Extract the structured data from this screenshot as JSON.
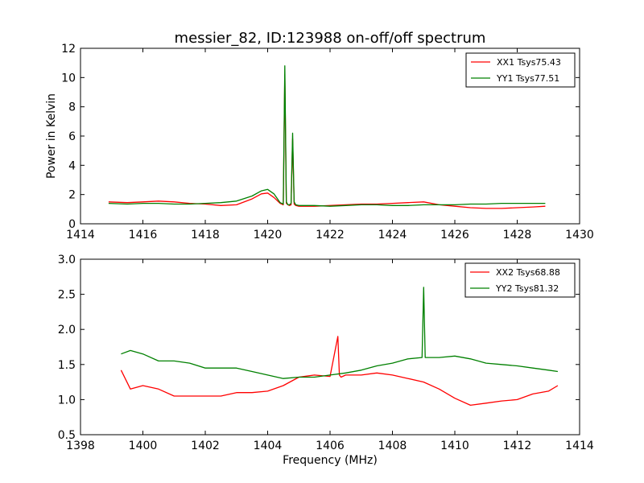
{
  "figure": {
    "title": "messier_82, ID:123988 on-off/off spectrum"
  },
  "chart_data": [
    {
      "type": "line",
      "title": "messier_82, ID:123988 on-off/off spectrum",
      "xlabel": "",
      "ylabel": "Power in Kelvin",
      "xlim": [
        1414,
        1430
      ],
      "ylim": [
        0,
        12
      ],
      "xticks": [
        "1414",
        "1416",
        "1418",
        "1420",
        "1422",
        "1424",
        "1426",
        "1428",
        "1430"
      ],
      "yticks": [
        "0",
        "2",
        "4",
        "6",
        "8",
        "10",
        "12"
      ],
      "legend_position": "top-right",
      "grid": false,
      "series": [
        {
          "name": "XX1 Tsys75.43",
          "color": "#ff0000",
          "x": [
            1414.9,
            1415.5,
            1416.0,
            1416.5,
            1417.0,
            1417.5,
            1418.0,
            1418.5,
            1419.0,
            1419.5,
            1419.8,
            1420.0,
            1420.2,
            1420.4,
            1420.5,
            1420.55,
            1420.6,
            1420.65,
            1420.7,
            1420.75,
            1420.8,
            1420.85,
            1420.9,
            1421.0,
            1421.5,
            1422.0,
            1422.5,
            1423.0,
            1423.5,
            1424.0,
            1424.5,
            1425.0,
            1425.5,
            1426.0,
            1426.5,
            1427.0,
            1427.5,
            1428.0,
            1428.5,
            1428.9
          ],
          "values": [
            1.5,
            1.45,
            1.5,
            1.55,
            1.5,
            1.4,
            1.35,
            1.25,
            1.3,
            1.7,
            2.05,
            2.1,
            1.8,
            1.4,
            1.3,
            10.2,
            1.4,
            1.3,
            1.25,
            1.3,
            5.8,
            1.35,
            1.25,
            1.2,
            1.2,
            1.25,
            1.3,
            1.35,
            1.35,
            1.4,
            1.45,
            1.5,
            1.3,
            1.2,
            1.1,
            1.05,
            1.05,
            1.1,
            1.15,
            1.2
          ]
        },
        {
          "name": "YY1 Tsys77.51",
          "color": "#008000",
          "x": [
            1414.9,
            1415.5,
            1416.0,
            1416.5,
            1417.0,
            1417.5,
            1418.0,
            1418.5,
            1419.0,
            1419.5,
            1419.8,
            1420.0,
            1420.2,
            1420.4,
            1420.5,
            1420.55,
            1420.6,
            1420.65,
            1420.7,
            1420.75,
            1420.8,
            1420.85,
            1420.9,
            1421.0,
            1421.5,
            1422.0,
            1422.5,
            1423.0,
            1423.5,
            1424.0,
            1424.5,
            1425.0,
            1425.5,
            1426.0,
            1426.5,
            1427.0,
            1427.5,
            1428.0,
            1428.5,
            1428.9
          ],
          "values": [
            1.4,
            1.35,
            1.4,
            1.4,
            1.35,
            1.35,
            1.4,
            1.45,
            1.55,
            1.9,
            2.25,
            2.35,
            2.05,
            1.45,
            1.35,
            10.8,
            1.5,
            1.3,
            1.3,
            1.4,
            6.2,
            1.5,
            1.3,
            1.25,
            1.25,
            1.2,
            1.25,
            1.3,
            1.3,
            1.25,
            1.25,
            1.3,
            1.3,
            1.3,
            1.35,
            1.35,
            1.4,
            1.4,
            1.4,
            1.4
          ]
        }
      ]
    },
    {
      "type": "line",
      "title": "",
      "xlabel": "Frequency (MHz)",
      "ylabel": "",
      "xlim": [
        1398,
        1414
      ],
      "ylim": [
        0.5,
        3.0
      ],
      "xticks": [
        "1398",
        "1400",
        "1402",
        "1404",
        "1406",
        "1408",
        "1410",
        "1412",
        "1414"
      ],
      "yticks": [
        "0.5",
        "1.0",
        "1.5",
        "2.0",
        "2.5",
        "3.0"
      ],
      "legend_position": "top-right",
      "grid": false,
      "series": [
        {
          "name": "XX2 Tsys68.88",
          "color": "#ff0000",
          "x": [
            1399.3,
            1399.6,
            1400.0,
            1400.5,
            1401.0,
            1401.5,
            1402.0,
            1402.5,
            1403.0,
            1403.5,
            1404.0,
            1404.5,
            1405.0,
            1405.5,
            1406.0,
            1406.25,
            1406.3,
            1406.35,
            1406.5,
            1407.0,
            1407.5,
            1408.0,
            1408.5,
            1409.0,
            1409.5,
            1410.0,
            1410.5,
            1411.0,
            1411.5,
            1412.0,
            1412.5,
            1413.0,
            1413.3
          ],
          "values": [
            1.42,
            1.15,
            1.2,
            1.15,
            1.05,
            1.05,
            1.05,
            1.05,
            1.1,
            1.1,
            1.12,
            1.2,
            1.32,
            1.35,
            1.33,
            1.9,
            1.35,
            1.32,
            1.35,
            1.35,
            1.38,
            1.35,
            1.3,
            1.25,
            1.15,
            1.02,
            0.92,
            0.95,
            0.98,
            1.0,
            1.08,
            1.12,
            1.2
          ]
        },
        {
          "name": "YY2 Tsys81.32",
          "color": "#008000",
          "x": [
            1399.3,
            1399.6,
            1400.0,
            1400.5,
            1401.0,
            1401.5,
            1402.0,
            1402.5,
            1403.0,
            1403.5,
            1404.0,
            1404.5,
            1405.0,
            1405.5,
            1406.0,
            1406.5,
            1407.0,
            1407.5,
            1408.0,
            1408.5,
            1408.95,
            1409.0,
            1409.05,
            1409.5,
            1410.0,
            1410.5,
            1411.0,
            1411.5,
            1412.0,
            1412.5,
            1413.0,
            1413.3
          ],
          "values": [
            1.65,
            1.7,
            1.65,
            1.55,
            1.55,
            1.52,
            1.45,
            1.45,
            1.45,
            1.4,
            1.35,
            1.3,
            1.32,
            1.32,
            1.35,
            1.38,
            1.42,
            1.48,
            1.52,
            1.58,
            1.6,
            2.6,
            1.6,
            1.6,
            1.62,
            1.58,
            1.52,
            1.5,
            1.48,
            1.45,
            1.42,
            1.4
          ]
        }
      ]
    }
  ]
}
